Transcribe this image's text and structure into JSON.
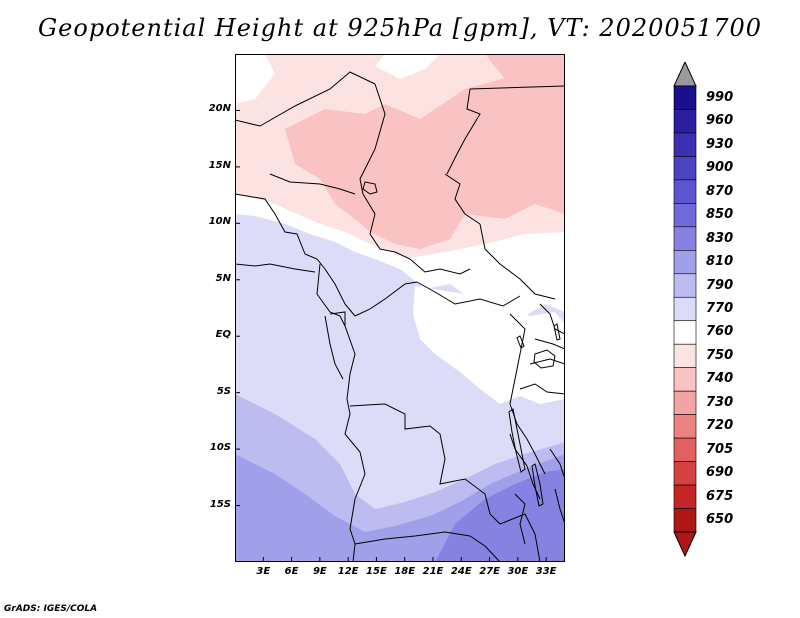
{
  "title": "Geopotential Height at 925hPa [gpm], VT: 2020051700",
  "credit": "GrADS: IGES/COLA",
  "map": {
    "lat_labels": [
      "20N",
      "15N",
      "10N",
      "5N",
      "EQ",
      "5S",
      "10S",
      "15S"
    ],
    "lon_labels": [
      "3E",
      "6E",
      "9E",
      "12E",
      "15E",
      "18E",
      "21E",
      "24E",
      "27E",
      "30E",
      "33E"
    ],
    "lat_values": [
      20,
      15,
      10,
      5,
      0,
      -5,
      -10,
      -15
    ],
    "lon_values": [
      3,
      6,
      9,
      12,
      15,
      18,
      21,
      24,
      27,
      30,
      33
    ],
    "lon_range": [
      0,
      35
    ],
    "lat_range": [
      -20,
      25
    ]
  },
  "colorbar": {
    "labels": [
      "990",
      "960",
      "930",
      "900",
      "870",
      "850",
      "830",
      "810",
      "790",
      "770",
      "760",
      "750",
      "740",
      "730",
      "720",
      "705",
      "690",
      "675",
      "650"
    ],
    "colors": [
      "#1a0f8c",
      "#2a1fa0",
      "#3a30b4",
      "#4b42c4",
      "#5b55d0",
      "#6f6ada",
      "#8582e2",
      "#a09fe9",
      "#bcbcf1",
      "#dcdcf8",
      "#ffffff",
      "#fde2e2",
      "#f9c3c3",
      "#f4a3a3",
      "#ec8282",
      "#e26060",
      "#d64040",
      "#c52525",
      "#b01616"
    ],
    "top_arrow_color": "#9a9a9a",
    "bottom_arrow_color": "#b01616"
  },
  "field_colors": {
    "c760": "#ffffff",
    "c770": "#dcdcf8",
    "c790": "#bcbcf1",
    "c810": "#a09fe9",
    "c830": "#8582e2",
    "c750": "#fde2e2",
    "c740": "#f9c3c3",
    "border": "#000000"
  }
}
